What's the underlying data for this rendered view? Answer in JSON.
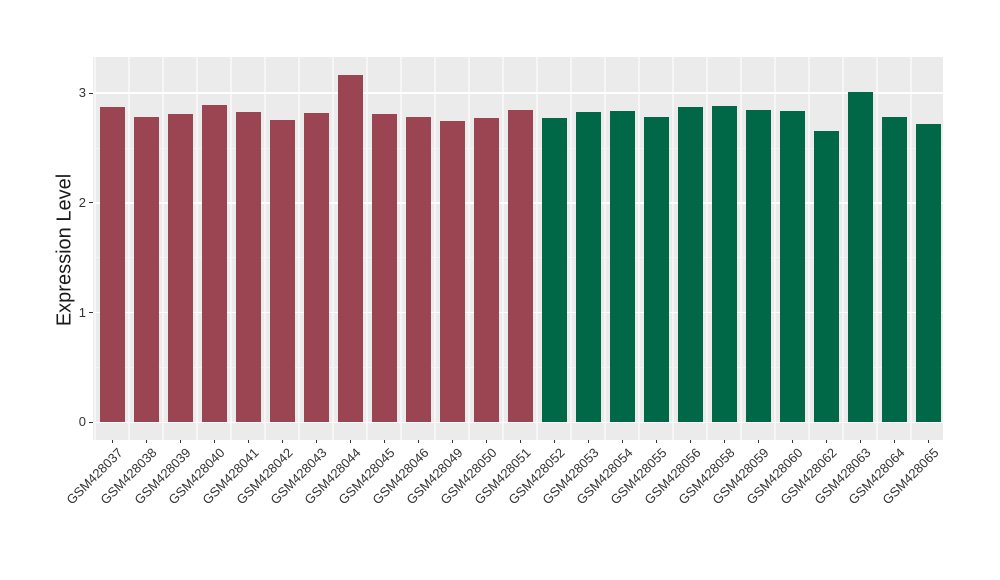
{
  "chart_data": {
    "type": "bar",
    "title": "",
    "xlabel": "",
    "ylabel": "Expression Level",
    "y_ticks": [
      0,
      1,
      2,
      3
    ],
    "ylim": [
      -0.16,
      3.33
    ],
    "grid": true,
    "legend_position": "none",
    "categories": [
      "GSM428037",
      "GSM428038",
      "GSM428039",
      "GSM428040",
      "GSM428041",
      "GSM428042",
      "GSM428043",
      "GSM428044",
      "GSM428045",
      "GSM428046",
      "GSM428049",
      "GSM428050",
      "GSM428051",
      "GSM428052",
      "GSM428053",
      "GSM428054",
      "GSM428055",
      "GSM428056",
      "GSM428058",
      "GSM428059",
      "GSM428060",
      "GSM428062",
      "GSM428063",
      "GSM428064",
      "GSM428065"
    ],
    "values": [
      2.87,
      2.78,
      2.81,
      2.89,
      2.83,
      2.76,
      2.82,
      3.17,
      2.81,
      2.78,
      2.75,
      2.77,
      2.85,
      2.77,
      2.83,
      2.84,
      2.78,
      2.87,
      2.88,
      2.85,
      2.84,
      2.66,
      3.01,
      2.78,
      2.72
    ],
    "bar_groups": [
      "red",
      "red",
      "red",
      "red",
      "red",
      "red",
      "red",
      "red",
      "red",
      "red",
      "red",
      "red",
      "red",
      "green",
      "green",
      "green",
      "green",
      "green",
      "green",
      "green",
      "green",
      "green",
      "green",
      "green",
      "green"
    ],
    "group_colors": {
      "red": "#9A4551",
      "green": "#016847"
    },
    "style": {
      "panel_bg": "#EBEBEB",
      "grid_major": "#FFFFFF",
      "grid_minor": "#F3F3F3",
      "grid_vertical": "#F6F6F6",
      "tick_text": "#333333",
      "axis_title_text": "#1A1A1A"
    }
  }
}
